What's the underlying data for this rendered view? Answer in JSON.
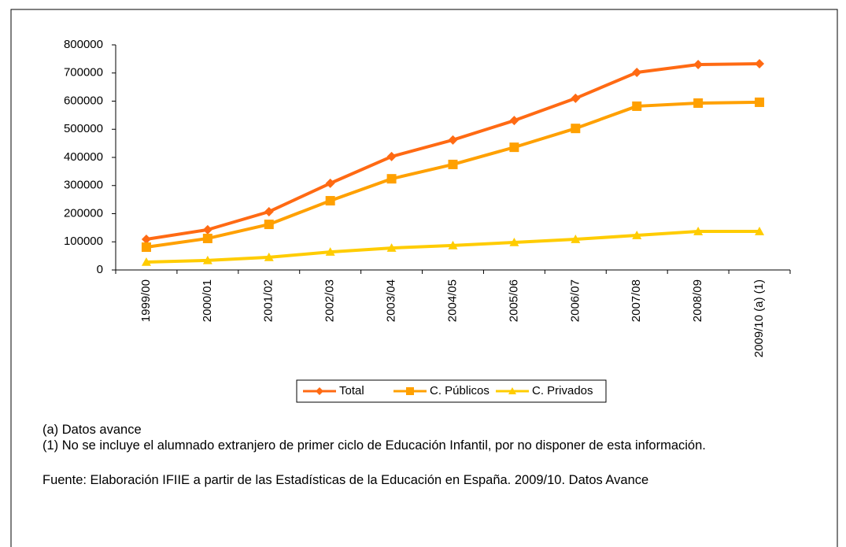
{
  "chart_data": {
    "type": "line",
    "categories": [
      "1999/00",
      "2000/01",
      "2001/02",
      "2002/03",
      "2003/04",
      "2004/05",
      "2005/06",
      "2006/07",
      "2007/08",
      "2008/09",
      "2009/10 (a) (1)"
    ],
    "series": [
      {
        "name": "Total",
        "color": "#ff6a13",
        "marker": "diamond",
        "values": [
          109000,
          143000,
          207000,
          308000,
          403000,
          462000,
          531000,
          610000,
          702000,
          730000,
          733000
        ]
      },
      {
        "name": "C. Públicos",
        "color": "#ffa000",
        "marker": "square",
        "values": [
          81000,
          112000,
          162000,
          246000,
          324000,
          375000,
          436000,
          503000,
          582000,
          593000,
          596000
        ]
      },
      {
        "name": "C. Privados",
        "color": "#ffcc00",
        "marker": "triangle",
        "values": [
          28000,
          34000,
          45000,
          64000,
          78000,
          87000,
          98000,
          109000,
          123000,
          137000,
          137000
        ]
      }
    ],
    "ylim": [
      0,
      800000
    ],
    "yticks": [
      0,
      100000,
      200000,
      300000,
      400000,
      500000,
      600000,
      700000,
      800000
    ],
    "legend": "bottom",
    "notes": [
      "(a) Datos avance",
      "(1) No se incluye el alumnado extranjero de primer ciclo de Educación Infantil, por no disponer de esta información.",
      "Fuente: Elaboración IFIIE a partir de las Estadísticas de la Educación en España. 2009/10. Datos Avance"
    ]
  }
}
